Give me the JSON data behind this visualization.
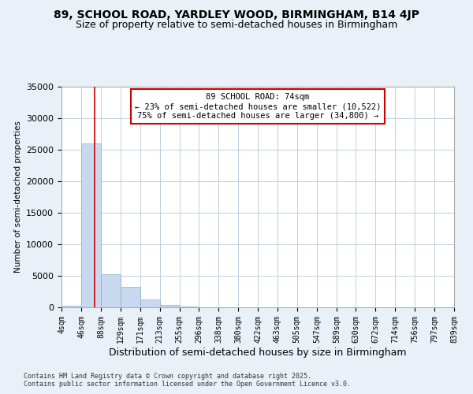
{
  "title1": "89, SCHOOL ROAD, YARDLEY WOOD, BIRMINGHAM, B14 4JP",
  "title2": "Size of property relative to semi-detached houses in Birmingham",
  "xlabel": "Distribution of semi-detached houses by size in Birmingham",
  "ylabel": "Number of semi-detached properties",
  "bin_edges": [
    4,
    46,
    88,
    129,
    171,
    213,
    255,
    296,
    338,
    380,
    422,
    463,
    505,
    547,
    589,
    630,
    672,
    714,
    756,
    797,
    839
  ],
  "bar_heights": [
    300,
    26000,
    5200,
    3200,
    1200,
    400,
    100,
    20,
    5,
    2,
    1,
    0,
    0,
    0,
    0,
    0,
    0,
    0,
    0,
    0
  ],
  "bar_color": "#c8d8ee",
  "bar_edgecolor": "#8ab0d0",
  "property_size": 74,
  "vline_color": "#cc0000",
  "annotation_text": "89 SCHOOL ROAD: 74sqm\n← 23% of semi-detached houses are smaller (10,522)\n75% of semi-detached houses are larger (34,800) →",
  "annotation_box_edgecolor": "#cc0000",
  "annotation_box_facecolor": "#ffffff",
  "ylim": [
    0,
    35000
  ],
  "yticks": [
    0,
    5000,
    10000,
    15000,
    20000,
    25000,
    30000,
    35000
  ],
  "footer1": "Contains HM Land Registry data © Crown copyright and database right 2025.",
  "footer2": "Contains public sector information licensed under the Open Government Licence v3.0.",
  "bg_color": "#eaf0f8",
  "plot_bg_color": "#ffffff",
  "grid_color": "#c0d0e0"
}
